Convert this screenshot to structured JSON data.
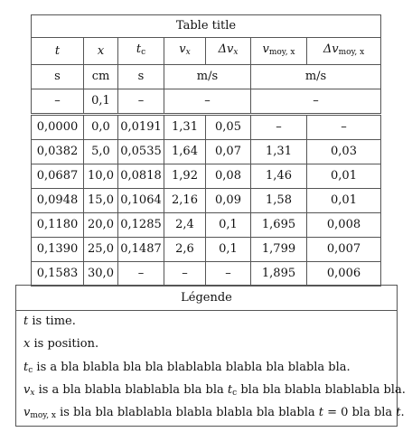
{
  "table": {
    "title": "Table title",
    "headers": {
      "t": "t",
      "x": "x",
      "tc": "t",
      "tc_sub": "c",
      "vx": "v",
      "vx_sub": "x",
      "dvx": "Δv",
      "dvx_sub": "x",
      "vmoy": "v",
      "vmoy_sub": "moy, x",
      "dvmoy": "Δv",
      "dvmoy_sub": "moy, x"
    },
    "units": {
      "t": "s",
      "x": "cm",
      "tc": "s",
      "v": "m/s",
      "vmoy": "m/s"
    },
    "uncertainty": {
      "t": "–",
      "x": "0,1",
      "tc": "–",
      "v": "–",
      "vmoy": "–"
    },
    "rows": [
      [
        "0,0000",
        "0,0",
        "0,0191",
        "1,31",
        "0,05",
        "–",
        "–"
      ],
      [
        "0,0382",
        "5,0",
        "0,0535",
        "1,64",
        "0,07",
        "1,31",
        "0,03"
      ],
      [
        "0,0687",
        "10,0",
        "0,0818",
        "1,92",
        "0,08",
        "1,46",
        "0,01"
      ],
      [
        "0,0948",
        "15,0",
        "0,1064",
        "2,16",
        "0,09",
        "1,58",
        "0,01"
      ],
      [
        "0,1180",
        "20,0",
        "0,1285",
        "2,4",
        "0,1",
        "1,695",
        "0,008"
      ],
      [
        "0,1390",
        "25,0",
        "0,1487",
        "2,6",
        "0,1",
        "1,799",
        "0,007"
      ],
      [
        "0,1583",
        "30,0",
        "–",
        "–",
        "–",
        "1,895",
        "0,006"
      ]
    ]
  },
  "legend": {
    "title": "Légende",
    "t_sym": "t",
    "t_text": " is time.",
    "x_sym": "x",
    "x_text": " is position.",
    "tc_sym": "t",
    "tc_sub": "c",
    "tc_text": " is a bla blabla bla bla blablabla blabla bla blabla bla.",
    "vx_sym": "v",
    "vx_sub": "x",
    "vx_text1": " is a bla blabla blablabla bla bla ",
    "vx_ref_sym": "t",
    "vx_ref_sub": "c",
    "vx_text2": " bla bla blabla blablabla bla.",
    "vmoy_sym": "v",
    "vmoy_sub": "moy, x",
    "vmoy_text1": " is bla bla blablabla blabla blabla bla blabla ",
    "vmoy_eq_sym": "t",
    "vmoy_eq": " = 0",
    "vmoy_text2": " bla bla ",
    "vmoy_end_sym": "t",
    "vmoy_end": "."
  }
}
